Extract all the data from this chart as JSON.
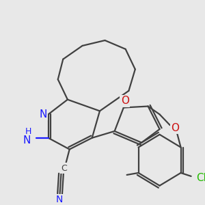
{
  "bg_color": "#e8e8e8",
  "bond_color": "#404040",
  "bond_width": 1.6,
  "dgap": 0.012,
  "atom_colors": {
    "N": "#1a1aff",
    "O": "#cc1111",
    "Cl": "#22bb00",
    "C": "#404040"
  },
  "label_bg": "#e8e8e8"
}
